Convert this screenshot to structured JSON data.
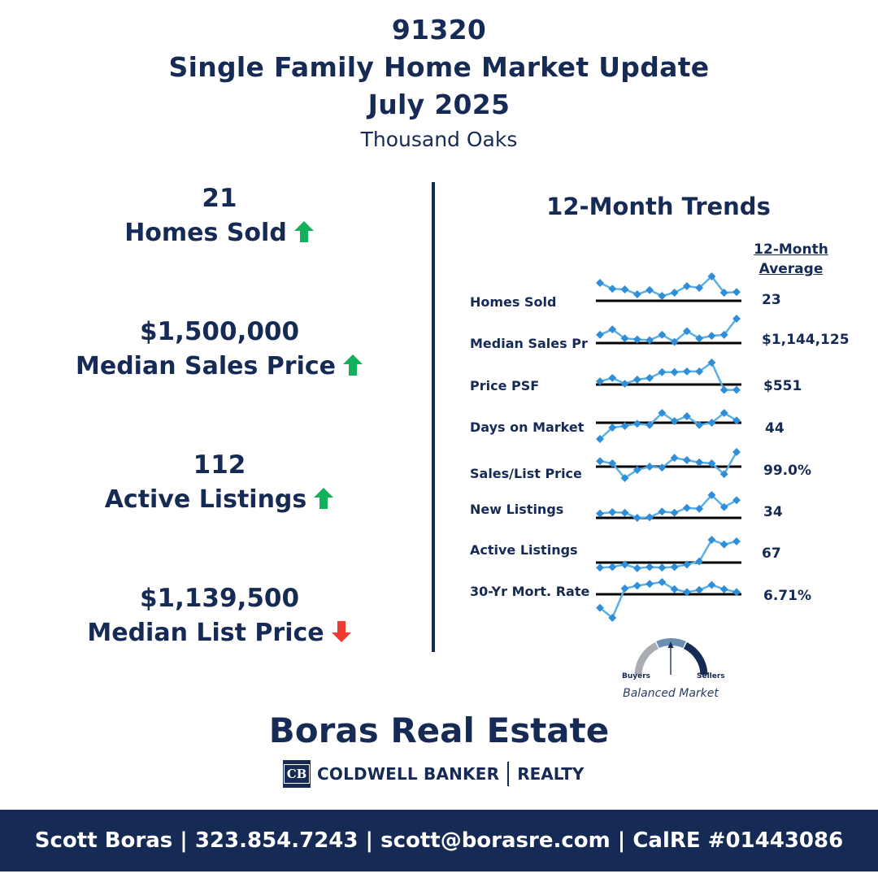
{
  "header": {
    "zip": "91320",
    "title": "Single Family Home Market Update",
    "date": "July 2025",
    "city": "Thousand Oaks"
  },
  "stats": [
    {
      "value": "21",
      "label": "Homes Sold",
      "direction": "up"
    },
    {
      "value": "$1,500,000",
      "label": "Median Sales Price",
      "direction": "up"
    },
    {
      "value": "112",
      "label": "Active Listings",
      "direction": "up"
    },
    {
      "value": "$1,139,500",
      "label": "Median List Price",
      "direction": "down"
    }
  ],
  "trends": {
    "title": "12-Month Trends",
    "avg_heading_1": "12-Month",
    "avg_heading_2": "Average",
    "rows": [
      {
        "label": "Homes Sold",
        "average": "23",
        "series": [
          0.8,
          0.62,
          0.6,
          0.45,
          0.58,
          0.4,
          0.5,
          0.7,
          0.65,
          1.0,
          0.5,
          0.52
        ]
      },
      {
        "label": "Median Sales Pr",
        "average": "$1,144,125",
        "series": [
          0.55,
          0.7,
          0.45,
          0.42,
          0.4,
          0.55,
          0.35,
          0.65,
          0.45,
          0.52,
          0.55,
          1.0
        ]
      },
      {
        "label": "Price PSF",
        "average": "$551",
        "series": [
          0.45,
          0.55,
          0.38,
          0.5,
          0.55,
          0.72,
          0.72,
          0.74,
          0.74,
          1.0,
          0.2,
          0.2
        ]
      },
      {
        "label": "Days on Market",
        "average": "44",
        "series": [
          0.05,
          0.4,
          0.45,
          0.52,
          0.48,
          0.85,
          0.6,
          0.75,
          0.48,
          0.55,
          0.85,
          0.62
        ]
      },
      {
        "label": "Sales/List Price",
        "average": "99.0%",
        "series": [
          0.72,
          0.65,
          0.2,
          0.45,
          0.55,
          0.52,
          0.82,
          0.75,
          0.68,
          0.65,
          0.32,
          1.0
        ]
      },
      {
        "label": "New Listings",
        "average": "34",
        "series": [
          0.35,
          0.4,
          0.38,
          0.2,
          0.22,
          0.42,
          0.38,
          0.55,
          0.52,
          1.0,
          0.58,
          0.82
        ]
      },
      {
        "label": "Active Listings",
        "average": "67",
        "series": [
          0.1,
          0.12,
          0.2,
          0.08,
          0.12,
          0.1,
          0.12,
          0.2,
          0.3,
          1.0,
          0.85,
          0.95
        ]
      },
      {
        "label": "30-Yr Mort. Rate",
        "average": "6.71%",
        "series": [
          0.28,
          0.0,
          0.82,
          0.9,
          0.95,
          1.0,
          0.8,
          0.72,
          0.78,
          0.92,
          0.8,
          0.72
        ]
      }
    ]
  },
  "gauge": {
    "left_label": "Buyers",
    "right_label": "Sellers",
    "caption": "Balanced Market"
  },
  "brand": {
    "name": "Boras Real Estate",
    "company": "COLDWELL BANKER",
    "company_suffix": "REALTY",
    "logo_letters": "CB"
  },
  "footer": {
    "text": "Scott Boras | 323.854.7243 | scott@borasre.com | CalRE #01443086"
  },
  "colors": {
    "navy": "#152a55",
    "up": "#12b05a",
    "down": "#ee3b2f",
    "spark": "#5ab0e6",
    "spark_dot": "#2f8ed8"
  }
}
